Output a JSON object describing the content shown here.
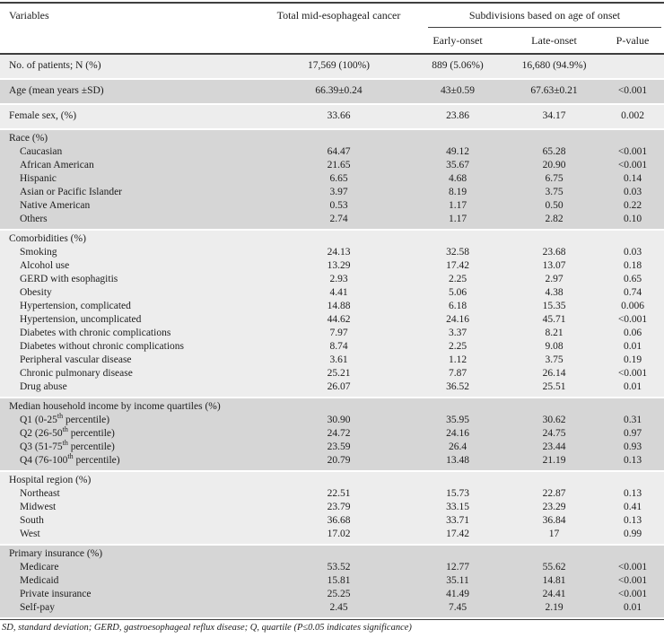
{
  "colors": {
    "band_light": "#ededed",
    "band_dark": "#d6d6d6",
    "rule": "#3f3f3f",
    "text": "#1c1c1c"
  },
  "table": {
    "header": {
      "col_variables": "Variables",
      "col_total": "Total mid-esophageal cancer",
      "span_subdivisions": "Subdivisions based on age of onset",
      "col_early": "Early-onset",
      "col_late": "Late-onset",
      "col_p": "P-value"
    },
    "groups": [
      {
        "name": "no-of-patients",
        "shade": "light",
        "single": true,
        "rows": [
          {
            "label": "No. of patients; N (%)",
            "total": "17,569 (100%)",
            "early": "889 (5.06%)",
            "late": "16,680 (94.9%)",
            "p": ""
          }
        ]
      },
      {
        "name": "age",
        "shade": "dark",
        "single": true,
        "rows": [
          {
            "label": "Age (mean years ±SD)",
            "total": "66.39±0.24",
            "early": "43±0.59",
            "late": "67.63±0.21",
            "p": "<0.001"
          }
        ]
      },
      {
        "name": "female-sex",
        "shade": "light",
        "single": true,
        "rows": [
          {
            "label": "Female sex, (%)",
            "total": "33.66",
            "early": "23.86",
            "late": "34.17",
            "p": "0.002"
          }
        ]
      },
      {
        "name": "race",
        "shade": "dark",
        "header": "Race (%)",
        "rows": [
          {
            "label": "Caucasian",
            "total": "64.47",
            "early": "49.12",
            "late": "65.28",
            "p": "<0.001"
          },
          {
            "label": "African American",
            "total": "21.65",
            "early": "35.67",
            "late": "20.90",
            "p": "<0.001"
          },
          {
            "label": "Hispanic",
            "total": "6.65",
            "early": "4.68",
            "late": "6.75",
            "p": "0.14"
          },
          {
            "label": "Asian or Pacific Islander",
            "total": "3.97",
            "early": "8.19",
            "late": "3.75",
            "p": "0.03"
          },
          {
            "label": "Native American",
            "total": "0.53",
            "early": "1.17",
            "late": "0.50",
            "p": "0.22"
          },
          {
            "label": "Others",
            "total": "2.74",
            "early": "1.17",
            "late": "2.82",
            "p": "0.10"
          }
        ]
      },
      {
        "name": "comorbidities",
        "shade": "light",
        "header": "Comorbidities (%)",
        "rows": [
          {
            "label": "Smoking",
            "total": "24.13",
            "early": "32.58",
            "late": "23.68",
            "p": "0.03"
          },
          {
            "label": "Alcohol use",
            "total": "13.29",
            "early": "17.42",
            "late": "13.07",
            "p": "0.18"
          },
          {
            "label": "GERD with esophagitis",
            "total": "2.93",
            "early": "2.25",
            "late": "2.97",
            "p": "0.65"
          },
          {
            "label": "Obesity",
            "total": "4.41",
            "early": "5.06",
            "late": "4.38",
            "p": "0.74"
          },
          {
            "label": "Hypertension, complicated",
            "total": "14.88",
            "early": "6.18",
            "late": "15.35",
            "p": "0.006"
          },
          {
            "label": "Hypertension, uncomplicated",
            "total": "44.62",
            "early": "24.16",
            "late": "45.71",
            "p": "<0.001"
          },
          {
            "label": "Diabetes with chronic complications",
            "total": "7.97",
            "early": "3.37",
            "late": "8.21",
            "p": "0.06"
          },
          {
            "label": "Diabetes without chronic complications",
            "total": "8.74",
            "early": "2.25",
            "late": "9.08",
            "p": "0.01"
          },
          {
            "label": "Peripheral vascular disease",
            "total": "3.61",
            "early": "1.12",
            "late": "3.75",
            "p": "0.19"
          },
          {
            "label": "Chronic pulmonary disease",
            "total": "25.21",
            "early": "7.87",
            "late": "26.14",
            "p": "<0.001"
          },
          {
            "label": "Drug abuse",
            "total": "26.07",
            "early": "36.52",
            "late": "25.51",
            "p": "0.01"
          }
        ]
      },
      {
        "name": "income-quartiles",
        "shade": "dark",
        "header": "Median household income by income quartiles (%)",
        "rows": [
          {
            "label": "Q1 (0-25",
            "sup": "th",
            "label_after": " percentile)",
            "total": "30.90",
            "early": "35.95",
            "late": "30.62",
            "p": "0.31"
          },
          {
            "label": "Q2 (26-50",
            "sup": "th",
            "label_after": " percentile)",
            "total": "24.72",
            "early": "24.16",
            "late": "24.75",
            "p": "0.97"
          },
          {
            "label": "Q3 (51-75",
            "sup": "th",
            "label_after": " percentile)",
            "total": "23.59",
            "early": "26.4",
            "late": "23.44",
            "p": "0.93"
          },
          {
            "label": "Q4 (76-100",
            "sup": "th",
            "label_after": " percentile)",
            "total": "20.79",
            "early": "13.48",
            "late": "21.19",
            "p": "0.13"
          }
        ]
      },
      {
        "name": "hospital-region",
        "shade": "light",
        "header": "Hospital region (%)",
        "rows": [
          {
            "label": "Northeast",
            "total": "22.51",
            "early": "15.73",
            "late": "22.87",
            "p": "0.13"
          },
          {
            "label": "Midwest",
            "total": "23.79",
            "early": "33.15",
            "late": "23.29",
            "p": "0.41"
          },
          {
            "label": "South",
            "total": "36.68",
            "early": "33.71",
            "late": "36.84",
            "p": "0.13"
          },
          {
            "label": "West",
            "total": "17.02",
            "early": "17.42",
            "late": "17",
            "p": "0.99"
          }
        ]
      },
      {
        "name": "primary-insurance",
        "shade": "dark",
        "header": "Primary insurance (%)",
        "rows": [
          {
            "label": "Medicare",
            "total": "53.52",
            "early": "12.77",
            "late": "55.62",
            "p": "<0.001"
          },
          {
            "label": "Medicaid",
            "total": "15.81",
            "early": "35.11",
            "late": "14.81",
            "p": "<0.001"
          },
          {
            "label": "Private insurance",
            "total": "25.25",
            "early": "41.49",
            "late": "24.41",
            "p": "<0.001"
          },
          {
            "label": "Self-pay",
            "total": "2.45",
            "early": "7.45",
            "late": "2.19",
            "p": "0.01"
          }
        ]
      }
    ],
    "footnote": "SD, standard deviation; GERD, gastroesophageal reflux disease; Q, quartile (P≤0.05 indicates significance)"
  }
}
